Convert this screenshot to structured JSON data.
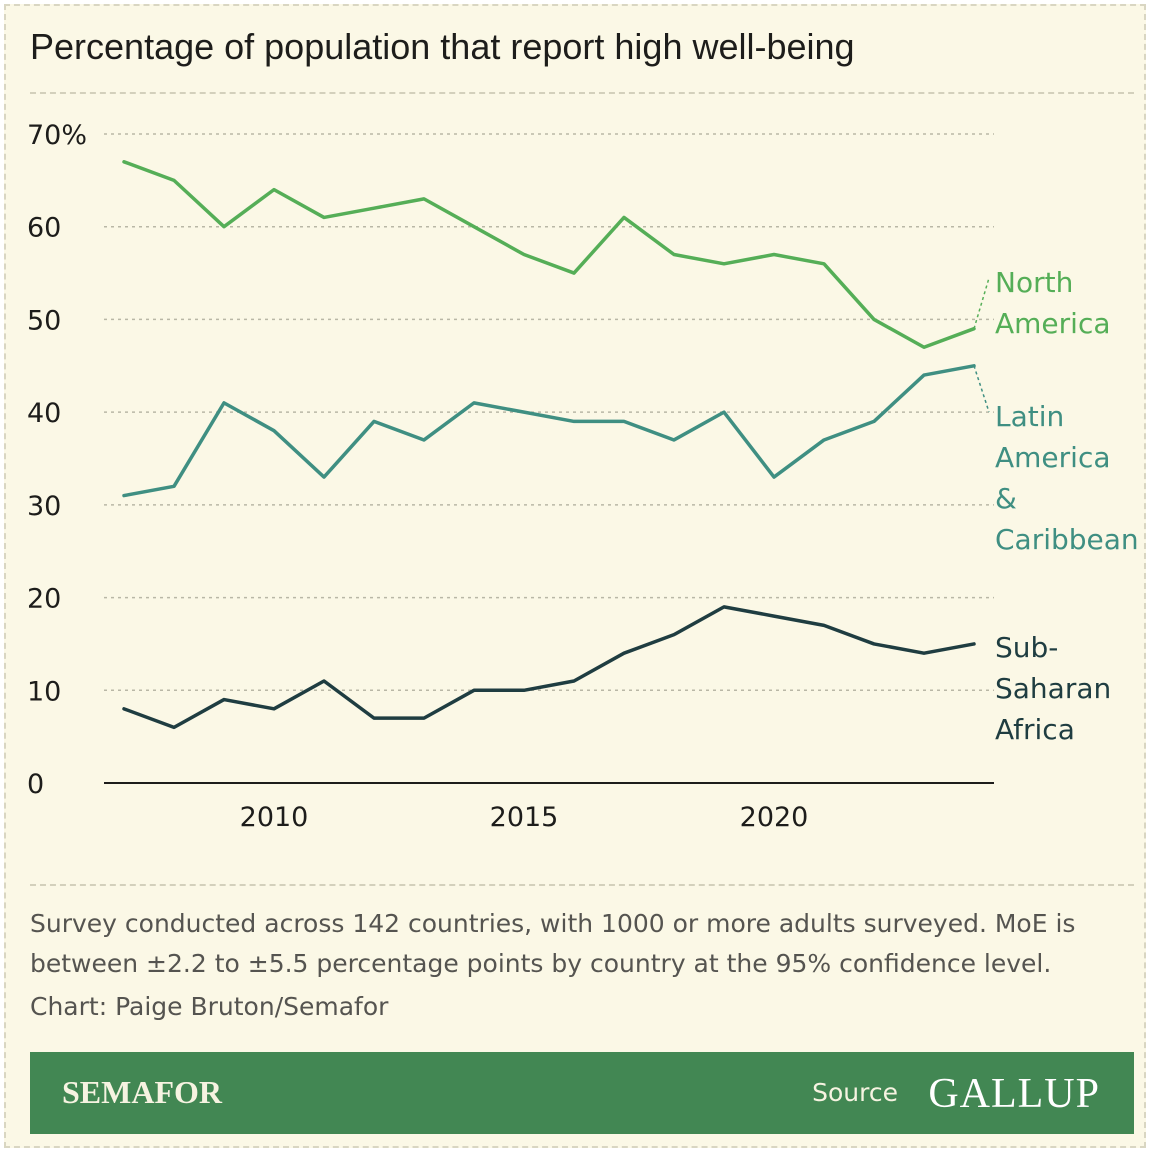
{
  "title": "Percentage of population that report high well-being",
  "note": "Survey conducted across 142 countries, with 1000 or more adults surveyed. MoE is between ±2.2 to ±5.5 percentage points by country at the 95% confidence level.",
  "credit": "Chart: Paige Bruton/Semafor",
  "footer": {
    "brand": "SEMAFOR",
    "source_label": "Source",
    "source_logo": "GALLUP"
  },
  "chart_data": {
    "type": "line",
    "x": [
      2007,
      2008,
      2009,
      2010,
      2011,
      2012,
      2013,
      2014,
      2015,
      2016,
      2017,
      2018,
      2019,
      2020,
      2021,
      2022,
      2023,
      2024
    ],
    "xlim": [
      2007,
      2024
    ],
    "xticks": [
      2010,
      2015,
      2020
    ],
    "xtick_labels": [
      "2010",
      "2015",
      "2020"
    ],
    "ylim": [
      0,
      70
    ],
    "yticks": [
      0,
      10,
      20,
      30,
      40,
      50,
      60,
      70
    ],
    "ytick_labels": [
      "0",
      "10",
      "20",
      "30",
      "40",
      "50",
      "60",
      "70%"
    ],
    "grid": true,
    "legend": "direct labels at right end of lines",
    "series": [
      {
        "name": "North America",
        "label_lines": [
          "North",
          "America"
        ],
        "color": "#55ae57",
        "values": [
          67,
          65,
          60,
          64,
          61,
          62,
          63,
          60,
          57,
          55,
          61,
          57,
          56,
          57,
          56,
          50,
          47,
          49
        ]
      },
      {
        "name": "Latin America & Caribbean",
        "label_lines": [
          "Latin",
          "America",
          "&",
          "Caribbean"
        ],
        "color": "#3f8f82",
        "values": [
          31,
          32,
          41,
          38,
          33,
          39,
          37,
          41,
          40,
          39,
          39,
          37,
          40,
          33,
          37,
          39,
          44,
          45
        ]
      },
      {
        "name": "Sub-Saharan Africa",
        "label_lines": [
          "Sub-",
          "Saharan",
          "Africa"
        ],
        "color": "#1f3d41",
        "values": [
          8,
          6,
          9,
          8,
          11,
          7,
          7,
          10,
          10,
          11,
          14,
          16,
          19,
          18,
          17,
          15,
          14,
          15
        ]
      }
    ]
  }
}
